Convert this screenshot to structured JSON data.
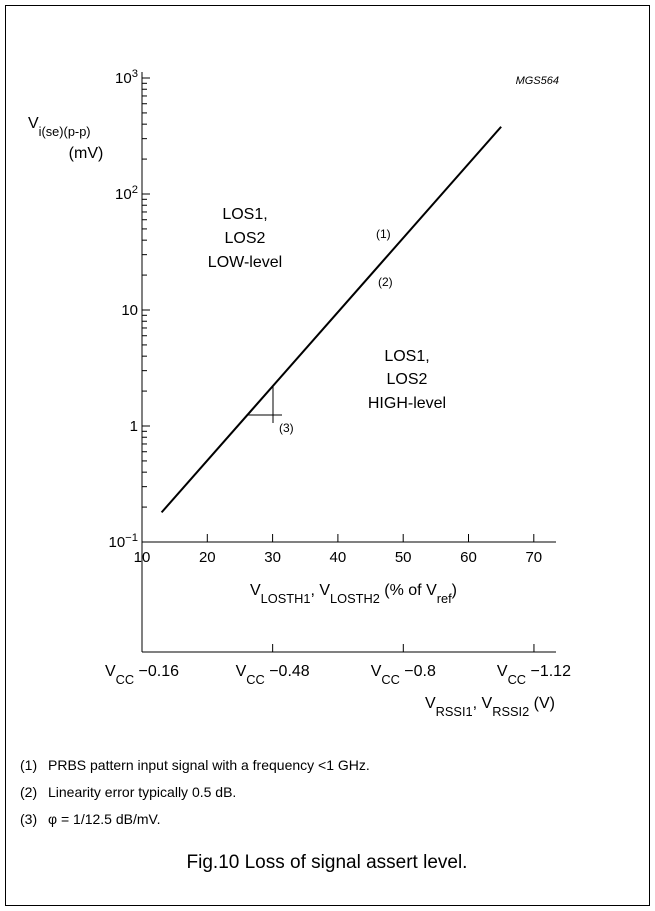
{
  "chart_data": {
    "type": "line",
    "log_y": true,
    "code": "MGS564",
    "ylabel": [
      {
        "text": "V"
      },
      {
        "text": "i(se)(p-p)",
        "sub": true
      }
    ],
    "yunit": "(mV)",
    "xlabel": [
      {
        "text": "V"
      },
      {
        "text": "LOSTH1",
        "sub": true
      },
      {
        "text": ", V"
      },
      {
        "text": "LOSTH2",
        "sub": true
      },
      {
        "text": " (% of V"
      },
      {
        "text": "ref",
        "sub": true
      },
      {
        "text": ")"
      }
    ],
    "x2label": [
      {
        "text": "V"
      },
      {
        "text": "RSSI1",
        "sub": true
      },
      {
        "text": ", V"
      },
      {
        "text": "RSSI2",
        "sub": true
      },
      {
        "text": " (V)"
      }
    ],
    "xlim": [
      10,
      73.4
    ],
    "xticks": [
      10,
      20,
      30,
      40,
      50,
      60,
      70
    ],
    "x2lim": [
      -0.16,
      -1.174
    ],
    "x2tick_prefix": [
      {
        "text": "V"
      },
      {
        "text": "CC",
        "sub": true
      }
    ],
    "x2ticks": [
      {
        "value": -0.16,
        "label": " −0.16"
      },
      {
        "value": -0.48,
        "label": " −0.48"
      },
      {
        "value": -0.8,
        "label": " −0.8"
      },
      {
        "value": -1.12,
        "label": " −1.12"
      }
    ],
    "ylim": [
      0.1,
      1000
    ],
    "yticks": [
      {
        "value": 0.1,
        "label": "10",
        "sup": "−1"
      },
      1,
      10,
      {
        "value": 100,
        "label": "10",
        "sup": "2"
      },
      {
        "value": 1000,
        "label": "10",
        "sup": "3"
      }
    ],
    "yminor": [
      0.2,
      0.3,
      0.4,
      0.5,
      0.6,
      0.7,
      0.8,
      0.9,
      2,
      3,
      4,
      5,
      6,
      7,
      8,
      9,
      20,
      30,
      40,
      50,
      60,
      70,
      80,
      90,
      200,
      300,
      400,
      500,
      600,
      700,
      800,
      900
    ],
    "series": [
      {
        "color": "#000000",
        "x": [
          13,
          65
        ],
        "values": [
          0.18,
          380
        ]
      }
    ],
    "regions": [
      [
        "LOS1,",
        "LOS2",
        "LOW-level"
      ],
      [
        "LOS1,",
        "LOS2",
        "HIGH-level"
      ]
    ],
    "markers": [
      "(1)",
      "(2)",
      "(3)"
    ],
    "notes": [
      {
        "label": "(1)",
        "text": "PRBS pattern input signal with a frequency <1 GHz."
      },
      {
        "label": "(2)",
        "text": "Linearity error typically 0.5 dB."
      },
      {
        "label": "(3)",
        "text": "φ = 1/12.5 dB/mV."
      }
    ],
    "caption": "Fig.10  Loss of signal assert level."
  }
}
